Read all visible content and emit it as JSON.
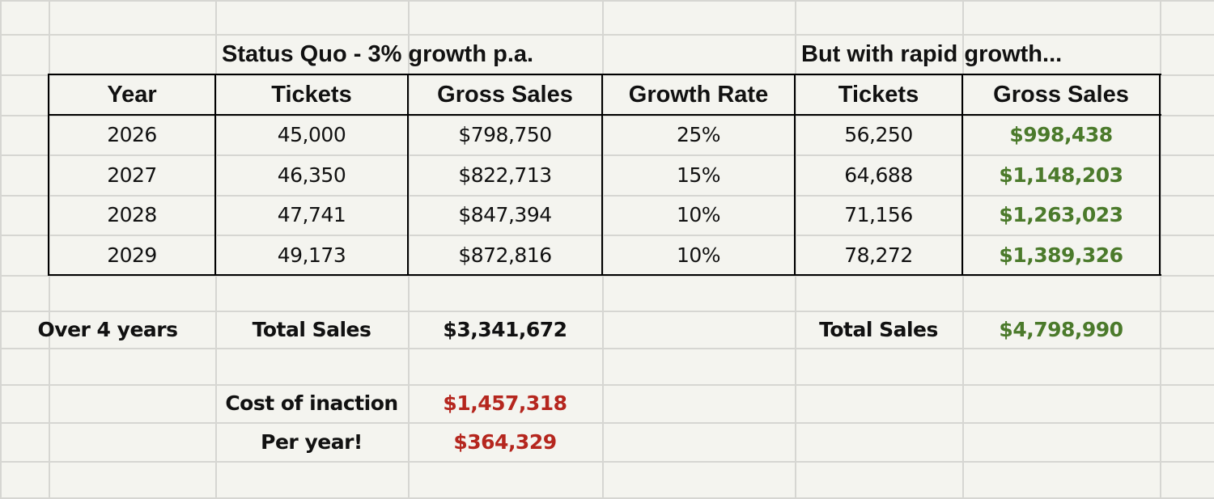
{
  "titles": {
    "status_quo": "Status Quo - 3% growth p.a.",
    "rapid": "But with rapid growth..."
  },
  "headers": [
    "Year",
    "Tickets",
    "Gross Sales",
    "Growth Rate",
    "Tickets",
    "Gross Sales"
  ],
  "rows": [
    [
      "2026",
      "45,000",
      "$798,750",
      "25%",
      "56,250",
      "$998,438"
    ],
    [
      "2027",
      "46,350",
      "$822,713",
      "15%",
      "64,688",
      "$1,148,203"
    ],
    [
      "2028",
      "47,741",
      "$847,394",
      "10%",
      "71,156",
      "$1,263,023"
    ],
    [
      "2029",
      "49,173",
      "$872,816",
      "10%",
      "78,272",
      "$1,389,326"
    ]
  ],
  "summary": {
    "over_label": "Over 4 years",
    "total_label": "Total Sales",
    "total_status_quo": "$3,341,672",
    "total_label_rapid": "Total Sales",
    "total_rapid": "$4,798,990",
    "cost_label": "Cost of inaction",
    "cost_value": "$1,457,318",
    "per_year_label": "Per year!",
    "per_year_value": "$364,329"
  },
  "colors": {
    "positive": "#4b7a2b",
    "negative": "#b5261e",
    "background": "#f4f4ef",
    "gridline": "#d6d6d2"
  }
}
